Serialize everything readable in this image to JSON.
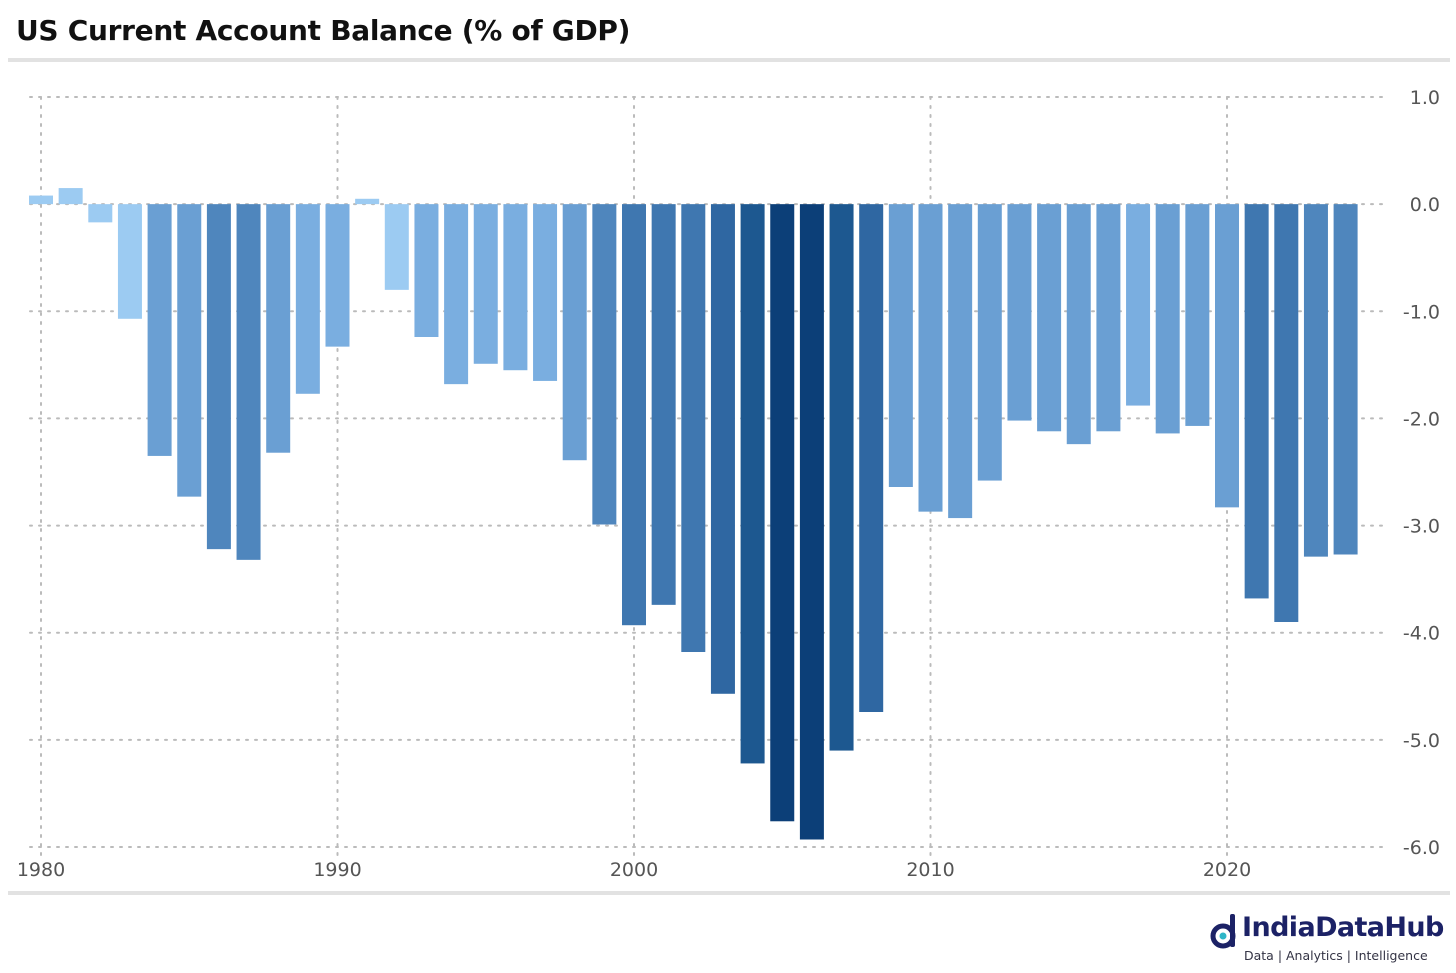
{
  "title": "US Current Account Balance (% of GDP)",
  "chart_data": {
    "type": "bar",
    "title": "US Current Account Balance (% of GDP)",
    "x": [
      1980,
      1981,
      1982,
      1983,
      1984,
      1985,
      1986,
      1987,
      1988,
      1989,
      1990,
      1991,
      1992,
      1993,
      1994,
      1995,
      1996,
      1997,
      1998,
      1999,
      2000,
      2001,
      2002,
      2003,
      2004,
      2005,
      2006,
      2007,
      2008,
      2009,
      2010,
      2011,
      2012,
      2013,
      2014,
      2015,
      2016,
      2017,
      2018,
      2019,
      2020,
      2021,
      2022,
      2023,
      2024
    ],
    "values": [
      0.08,
      0.15,
      -0.17,
      -1.07,
      -2.35,
      -2.73,
      -3.22,
      -3.32,
      -2.32,
      -1.77,
      -1.33,
      0.05,
      -0.8,
      -1.24,
      -1.68,
      -1.49,
      -1.55,
      -1.65,
      -2.39,
      -2.99,
      -3.93,
      -3.74,
      -4.18,
      -4.57,
      -5.22,
      -5.76,
      -5.93,
      -5.1,
      -4.74,
      -2.64,
      -2.87,
      -2.93,
      -2.58,
      -2.02,
      -2.12,
      -2.24,
      -2.12,
      -1.88,
      -2.14,
      -2.07,
      -2.83,
      -3.68,
      -3.9,
      -3.29,
      -3.27
    ],
    "x_ticks": [
      "1980",
      "1990",
      "2000",
      "2010",
      "2020"
    ],
    "y_ticks": [
      "1.0",
      "0.0",
      "-1.0",
      "-2.0",
      "-3.0",
      "-4.0",
      "-5.0",
      "-6.0"
    ],
    "ylim": [
      -6.0,
      1.0
    ],
    "xlabel": "",
    "ylabel": "",
    "y_axis_side": "right",
    "grid": "dotted",
    "legend": "none",
    "colors": {
      "lightest": "#9ccbf2",
      "light": "#7aaee0",
      "mid": "#4f86bd",
      "dark": "#1d5890",
      "darkest": "#0c3f78",
      "grid": "#bbbbbb",
      "rule": "#e2e2e2"
    }
  },
  "logo": {
    "name": "IndiaDataHub",
    "tagline": "Data | Analytics | Intelligence",
    "color": "#1c2266"
  }
}
